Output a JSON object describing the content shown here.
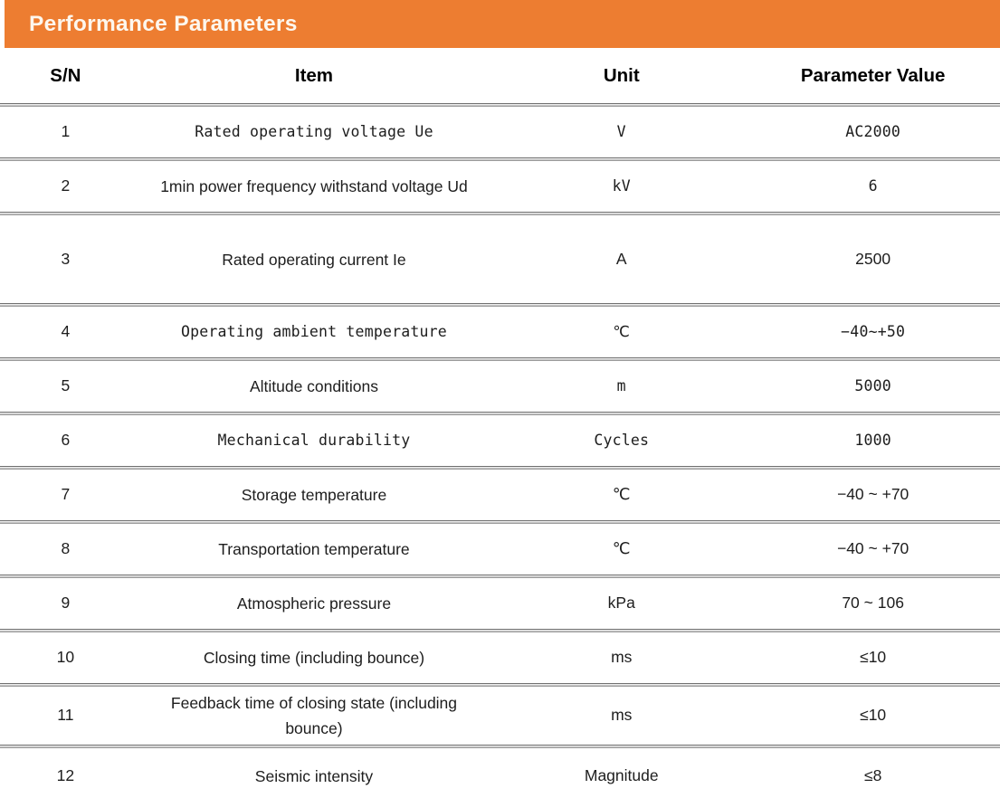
{
  "banner": {
    "title": "Performance Parameters",
    "bg_color": "#ED7D31",
    "text_color": "#FDF7EE"
  },
  "table": {
    "columns": [
      "S/N",
      "Item",
      "Unit",
      "Parameter Value"
    ],
    "rows": [
      {
        "sn": "1",
        "item": "Rated operating voltage Ue",
        "unit": "V",
        "value": "AC2000"
      },
      {
        "sn": "2",
        "item": "1min power frequency withstand voltage Ud",
        "unit": "kV",
        "value": "6"
      },
      {
        "sn": "3",
        "item": "Rated operating current Ie",
        "unit": "A",
        "value": "2500"
      },
      {
        "sn": "4",
        "item": "Operating ambient temperature",
        "unit": "℃",
        "value": "−40~+50"
      },
      {
        "sn": "5",
        "item": "Altitude conditions",
        "unit": "m",
        "value": "5000"
      },
      {
        "sn": "6",
        "item": "Mechanical durability",
        "unit": "Cycles",
        "value": "1000"
      },
      {
        "sn": "7",
        "item": "Storage temperature",
        "unit": "℃",
        "value": "−40 ~ +70"
      },
      {
        "sn": "8",
        "item": "Transportation temperature",
        "unit": "℃",
        "value": "−40 ~ +70"
      },
      {
        "sn": "9",
        "item": "Atmospheric pressure",
        "unit": "kPa",
        "value": "70 ~ 106"
      },
      {
        "sn": "10",
        "item": "Closing time (including bounce)",
        "unit": "ms",
        "value": "≤10"
      },
      {
        "sn": "11",
        "item": "Feedback time of closing state (including bounce)",
        "unit": "ms",
        "value": "≤10"
      },
      {
        "sn": "12",
        "item": "Seismic intensity",
        "unit": "Magnitude",
        "value": "≤8"
      }
    ]
  }
}
